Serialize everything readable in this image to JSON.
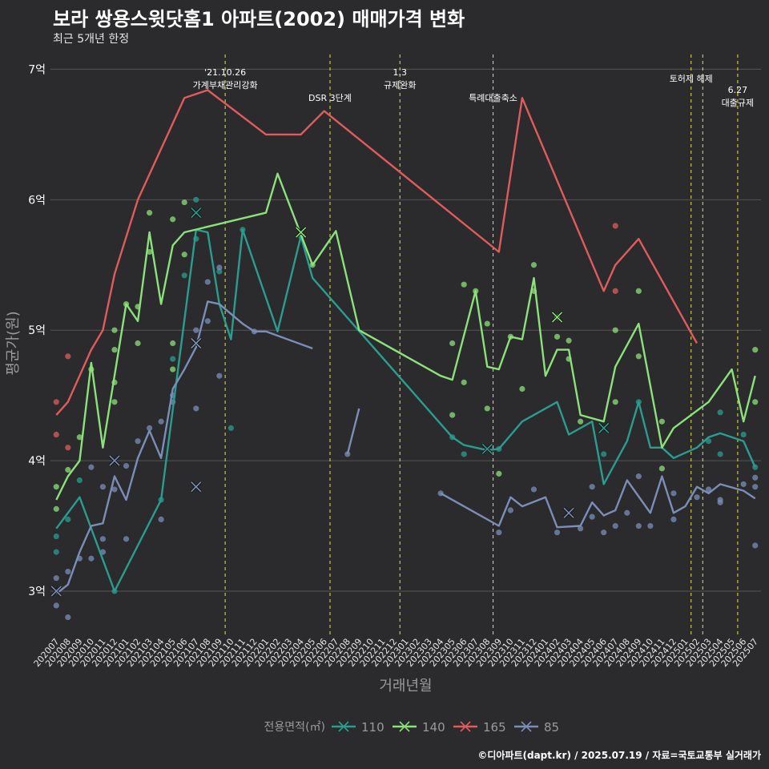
{
  "header": {
    "title": "보라 쌍용스윗닷홈1 아파트(2002) 매매가격 변화",
    "subtitle": "최근 5개년 한정"
  },
  "caption": "©디아파트(dapt.kr) / 2025.07.19 / 자료=국토교통부 실거래가",
  "colors": {
    "background": "#2b2a2c",
    "grid": "#555555",
    "event_line": "#e5e54a",
    "s110": "#2a9d8f",
    "s140": "#8be27a",
    "s165": "#e05c5c",
    "s85": "#7a8fb8"
  },
  "chart_data": {
    "type": "line",
    "xlabel": "거래년월",
    "ylabel": "평균가(원)",
    "ylim": [
      2.65,
      7.15
    ],
    "y_ticks": [
      3,
      4,
      5,
      6,
      7
    ],
    "y_tick_labels": [
      "3억",
      "4억",
      "5억",
      "6억",
      "7억"
    ],
    "grid": true,
    "legend_title": "전용면적(㎡)",
    "legend_position": "bottom",
    "x_ticks": [
      "202007",
      "202008",
      "202009",
      "202010",
      "202011",
      "202012",
      "202101",
      "202102",
      "202103",
      "202104",
      "202105",
      "202106",
      "202107",
      "202108",
      "202109",
      "202110",
      "202111",
      "202112",
      "202201",
      "202202",
      "202203",
      "202204",
      "202205",
      "202206",
      "202207",
      "202208",
      "202209",
      "202210",
      "202211",
      "202212",
      "202301",
      "202302",
      "202303",
      "202304",
      "202305",
      "202306",
      "202307",
      "202308",
      "202309",
      "202310",
      "202311",
      "202312",
      "202401",
      "202402",
      "202403",
      "202404",
      "202405",
      "202406",
      "202407",
      "202408",
      "202409",
      "202410",
      "202411",
      "202412",
      "202501",
      "202502",
      "202503",
      "202504",
      "202505",
      "202506",
      "202507"
    ],
    "events": [
      {
        "x": "202109.5",
        "labels": [
          "'21.10.26",
          "가계부채관리강화"
        ]
      },
      {
        "x": "202206.5",
        "labels": [
          "DSR 3단계"
        ]
      },
      {
        "x": "202212.5",
        "labels": [
          "1.3",
          "규제완화"
        ]
      },
      {
        "x": "202308.5",
        "labels": [
          "특례대출축소"
        ]
      },
      {
        "x": "202501.5",
        "labels": [
          "토허제 해제"
        ]
      },
      {
        "x": "202502.5",
        "labels": [
          ""
        ]
      },
      {
        "x": "202505.5",
        "labels": [
          "6.27",
          "대출규제"
        ]
      }
    ],
    "series": [
      {
        "name": "110",
        "color": "#2a9d8f",
        "line": [
          [
            "202007",
            3.48
          ],
          [
            "202009",
            3.72
          ],
          [
            "202012",
            3.0
          ],
          [
            "202104",
            3.7
          ],
          [
            "202107",
            5.77
          ],
          [
            "202108",
            5.75
          ],
          [
            "202109",
            5.2
          ],
          [
            "202110",
            4.93
          ],
          [
            "202111",
            5.77
          ],
          [
            "202202",
            4.99
          ],
          [
            "202204",
            5.72
          ],
          [
            "202205",
            5.4
          ],
          [
            "202305",
            4.18
          ],
          [
            "202306",
            4.12
          ],
          [
            "202308",
            4.08
          ],
          [
            "202309",
            4.09
          ],
          [
            "202311",
            4.3
          ],
          [
            "202401",
            4.4
          ],
          [
            "202402",
            4.45
          ],
          [
            "202403",
            4.2
          ],
          [
            "202405",
            4.3
          ],
          [
            "202406",
            3.82
          ],
          [
            "202408",
            4.15
          ],
          [
            "202409",
            4.45
          ],
          [
            "202410",
            4.1
          ],
          [
            "202411",
            4.1
          ],
          [
            "202412",
            4.02
          ],
          [
            "202502",
            4.1
          ],
          [
            "202503",
            4.18
          ],
          [
            "202504",
            4.21
          ],
          [
            "202506",
            4.15
          ],
          [
            "202507",
            3.95
          ]
        ],
        "points": [
          [
            "202007",
            3.3
          ],
          [
            "202007",
            3.42
          ],
          [
            "202008",
            3.55
          ],
          [
            "202009",
            3.85
          ],
          [
            "202012",
            3.0
          ],
          [
            "202104",
            3.7
          ],
          [
            "202105",
            4.78
          ],
          [
            "202106",
            5.42
          ],
          [
            "202107",
            6.0
          ],
          [
            "202107",
            5.7
          ],
          [
            "202109",
            5.45
          ],
          [
            "202110",
            4.25
          ],
          [
            "202111",
            5.77
          ],
          [
            "202204",
            5.72
          ],
          [
            "202305",
            4.18
          ],
          [
            "202306",
            4.05
          ],
          [
            "202309",
            4.09
          ],
          [
            "202406",
            4.05
          ],
          [
            "202409",
            4.45
          ],
          [
            "202503",
            4.15
          ],
          [
            "202504",
            4.37
          ],
          [
            "202504",
            4.05
          ],
          [
            "202506",
            4.2
          ],
          [
            "202507",
            3.95
          ]
        ],
        "markers": [
          [
            "202107",
            5.9
          ],
          [
            "202308",
            4.09
          ],
          [
            "202406",
            4.25
          ]
        ]
      },
      {
        "name": "140",
        "color": "#8be27a",
        "line": [
          [
            "202007",
            3.7
          ],
          [
            "202008",
            3.88
          ],
          [
            "202009",
            4.0
          ],
          [
            "202010",
            4.75
          ],
          [
            "202011",
            4.1
          ],
          [
            "202101",
            5.2
          ],
          [
            "202102",
            5.07
          ],
          [
            "202103",
            5.75
          ],
          [
            "202104",
            5.2
          ],
          [
            "202105",
            5.65
          ],
          [
            "202106",
            5.75
          ],
          [
            "202201",
            5.9
          ],
          [
            "202202",
            6.2
          ],
          [
            "202205",
            5.5
          ],
          [
            "202207",
            5.76
          ],
          [
            "202209",
            5.0
          ],
          [
            "202304",
            4.65
          ],
          [
            "202305",
            4.62
          ],
          [
            "202307",
            5.3
          ],
          [
            "202308",
            4.72
          ],
          [
            "202309",
            4.7
          ],
          [
            "202310",
            4.95
          ],
          [
            "202311",
            4.93
          ],
          [
            "202312",
            5.4
          ],
          [
            "202401",
            4.65
          ],
          [
            "202402",
            4.85
          ],
          [
            "202403",
            4.85
          ],
          [
            "202404",
            4.35
          ],
          [
            "202406",
            4.3
          ],
          [
            "202407",
            4.72
          ],
          [
            "202409",
            5.05
          ],
          [
            "202411",
            4.1
          ],
          [
            "202412",
            4.25
          ],
          [
            "202503",
            4.45
          ],
          [
            "202505",
            4.7
          ],
          [
            "202506",
            4.3
          ],
          [
            "202507",
            4.65
          ]
        ],
        "points": [
          [
            "202007",
            3.63
          ],
          [
            "202007",
            3.8
          ],
          [
            "202008",
            3.93
          ],
          [
            "202009",
            4.18
          ],
          [
            "202010",
            4.7
          ],
          [
            "202012",
            4.45
          ],
          [
            "202012",
            4.6
          ],
          [
            "202012",
            4.85
          ],
          [
            "202012",
            5.0
          ],
          [
            "202101",
            5.2
          ],
          [
            "202102",
            4.9
          ],
          [
            "202102",
            5.18
          ],
          [
            "202103",
            5.9
          ],
          [
            "202103",
            5.6
          ],
          [
            "202105",
            5.85
          ],
          [
            "202105",
            4.9
          ],
          [
            "202105",
            4.7
          ],
          [
            "202106",
            5.98
          ],
          [
            "202106",
            5.58
          ],
          [
            "202205",
            5.5
          ],
          [
            "202305",
            4.9
          ],
          [
            "202305",
            4.35
          ],
          [
            "202306",
            5.35
          ],
          [
            "202306",
            4.6
          ],
          [
            "202307",
            5.3
          ],
          [
            "202308",
            5.05
          ],
          [
            "202308",
            4.4
          ],
          [
            "202309",
            3.9
          ],
          [
            "202310",
            4.95
          ],
          [
            "202311",
            4.55
          ],
          [
            "202312",
            5.5
          ],
          [
            "202312",
            5.3
          ],
          [
            "202402",
            5.1
          ],
          [
            "202402",
            4.95
          ],
          [
            "202403",
            4.92
          ],
          [
            "202403",
            4.78
          ],
          [
            "202404",
            4.3
          ],
          [
            "202407",
            5.0
          ],
          [
            "202407",
            4.45
          ],
          [
            "202409",
            5.3
          ],
          [
            "202409",
            4.8
          ],
          [
            "202411",
            3.94
          ],
          [
            "202411",
            4.3
          ],
          [
            "202507",
            4.85
          ],
          [
            "202507",
            4.45
          ]
        ],
        "markers": [
          [
            "202204",
            5.75
          ],
          [
            "202402",
            5.1
          ]
        ]
      },
      {
        "name": "165",
        "color": "#e05c5c",
        "line": [
          [
            "202007",
            4.35
          ],
          [
            "202008",
            4.45
          ],
          [
            "202010",
            4.85
          ],
          [
            "202011",
            5.0
          ],
          [
            "202012",
            5.43
          ],
          [
            "202102",
            6.0
          ],
          [
            "202106",
            6.78
          ],
          [
            "202108",
            6.84
          ],
          [
            "202201",
            6.5
          ],
          [
            "202204",
            6.5
          ],
          [
            "202206",
            6.68
          ],
          [
            "202309",
            5.6
          ],
          [
            "202311",
            6.78
          ],
          [
            "202406",
            5.3
          ],
          [
            "202407",
            5.5
          ],
          [
            "202409",
            5.7
          ],
          [
            "202502",
            4.9
          ]
        ],
        "points": [
          [
            "202007",
            4.45
          ],
          [
            "202007",
            4.2
          ],
          [
            "202008",
            4.8
          ],
          [
            "202008",
            4.1
          ],
          [
            "202407",
            5.8
          ],
          [
            "202407",
            5.3
          ]
        ],
        "markers": []
      },
      {
        "name": "85",
        "color": "#7a8fb8",
        "line": [
          [
            "202007",
            2.98
          ],
          [
            "202008",
            3.05
          ],
          [
            "202009",
            3.3
          ],
          [
            "202010",
            3.5
          ],
          [
            "202011",
            3.52
          ],
          [
            "202012",
            3.88
          ],
          [
            "202101",
            3.7
          ],
          [
            "202102",
            4.02
          ],
          [
            "202103",
            4.23
          ],
          [
            "202104",
            4.02
          ],
          [
            "202105",
            4.55
          ],
          [
            "202106",
            4.7
          ],
          [
            "202107",
            4.87
          ],
          [
            "202108",
            5.22
          ],
          [
            "202109",
            5.2
          ],
          [
            "202111",
            5.05
          ],
          [
            "202112",
            4.99
          ],
          [
            "202201",
            4.99
          ],
          [
            "202205",
            4.86
          ]
        ],
        "line2": [
          [
            "202208",
            4.05
          ],
          [
            "202209",
            4.4
          ]
        ],
        "line3": [
          [
            "202304",
            3.75
          ],
          [
            "202309",
            3.5
          ],
          [
            "202310",
            3.72
          ],
          [
            "202311",
            3.65
          ],
          [
            "202401",
            3.72
          ],
          [
            "202402",
            3.49
          ],
          [
            "202404",
            3.5
          ],
          [
            "202405",
            3.68
          ],
          [
            "202406",
            3.58
          ],
          [
            "202407",
            3.62
          ],
          [
            "202408",
            3.85
          ],
          [
            "202410",
            3.6
          ],
          [
            "202411",
            3.88
          ],
          [
            "202412",
            3.6
          ],
          [
            "202501",
            3.65
          ],
          [
            "202502",
            3.8
          ],
          [
            "202503",
            3.75
          ],
          [
            "202504",
            3.82
          ],
          [
            "202506",
            3.77
          ],
          [
            "202507",
            3.71
          ]
        ],
        "points": [
          [
            "202007",
            2.89
          ],
          [
            "202007",
            3.1
          ],
          [
            "202008",
            2.8
          ],
          [
            "202008",
            3.15
          ],
          [
            "202009",
            3.25
          ],
          [
            "202010",
            3.95
          ],
          [
            "202010",
            3.25
          ],
          [
            "202011",
            3.3
          ],
          [
            "202011",
            3.8
          ],
          [
            "202011",
            3.4
          ],
          [
            "202012",
            3.78
          ],
          [
            "202101",
            3.96
          ],
          [
            "202101",
            3.4
          ],
          [
            "202102",
            4.15
          ],
          [
            "202103",
            4.25
          ],
          [
            "202104",
            4.3
          ],
          [
            "202104",
            3.55
          ],
          [
            "202105",
            4.45
          ],
          [
            "202105",
            4.5
          ],
          [
            "202107",
            5.0
          ],
          [
            "202107",
            4.4
          ],
          [
            "202108",
            5.07
          ],
          [
            "202108",
            5.37
          ],
          [
            "202109",
            5.48
          ],
          [
            "202109",
            4.65
          ],
          [
            "202112",
            4.99
          ],
          [
            "202208",
            4.05
          ],
          [
            "202304",
            3.75
          ],
          [
            "202309",
            3.45
          ],
          [
            "202310",
            3.62
          ],
          [
            "202312",
            3.78
          ],
          [
            "202402",
            3.45
          ],
          [
            "202404",
            3.48
          ],
          [
            "202405",
            3.8
          ],
          [
            "202405",
            3.57
          ],
          [
            "202406",
            3.45
          ],
          [
            "202407",
            3.5
          ],
          [
            "202408",
            3.6
          ],
          [
            "202409",
            3.88
          ],
          [
            "202409",
            3.5
          ],
          [
            "202410",
            3.5
          ],
          [
            "202412",
            3.75
          ],
          [
            "202412",
            3.55
          ],
          [
            "202502",
            3.72
          ],
          [
            "202503",
            3.78
          ],
          [
            "202504",
            3.7
          ],
          [
            "202504",
            3.68
          ],
          [
            "202506",
            3.82
          ],
          [
            "202507",
            3.35
          ],
          [
            "202507",
            3.8
          ],
          [
            "202507",
            3.87
          ]
        ],
        "markers": [
          [
            "202012",
            4.0
          ],
          [
            "202107",
            3.8
          ],
          [
            "202107",
            4.9
          ],
          [
            "202403",
            3.6
          ],
          [
            "202007",
            3.0
          ]
        ]
      }
    ]
  }
}
